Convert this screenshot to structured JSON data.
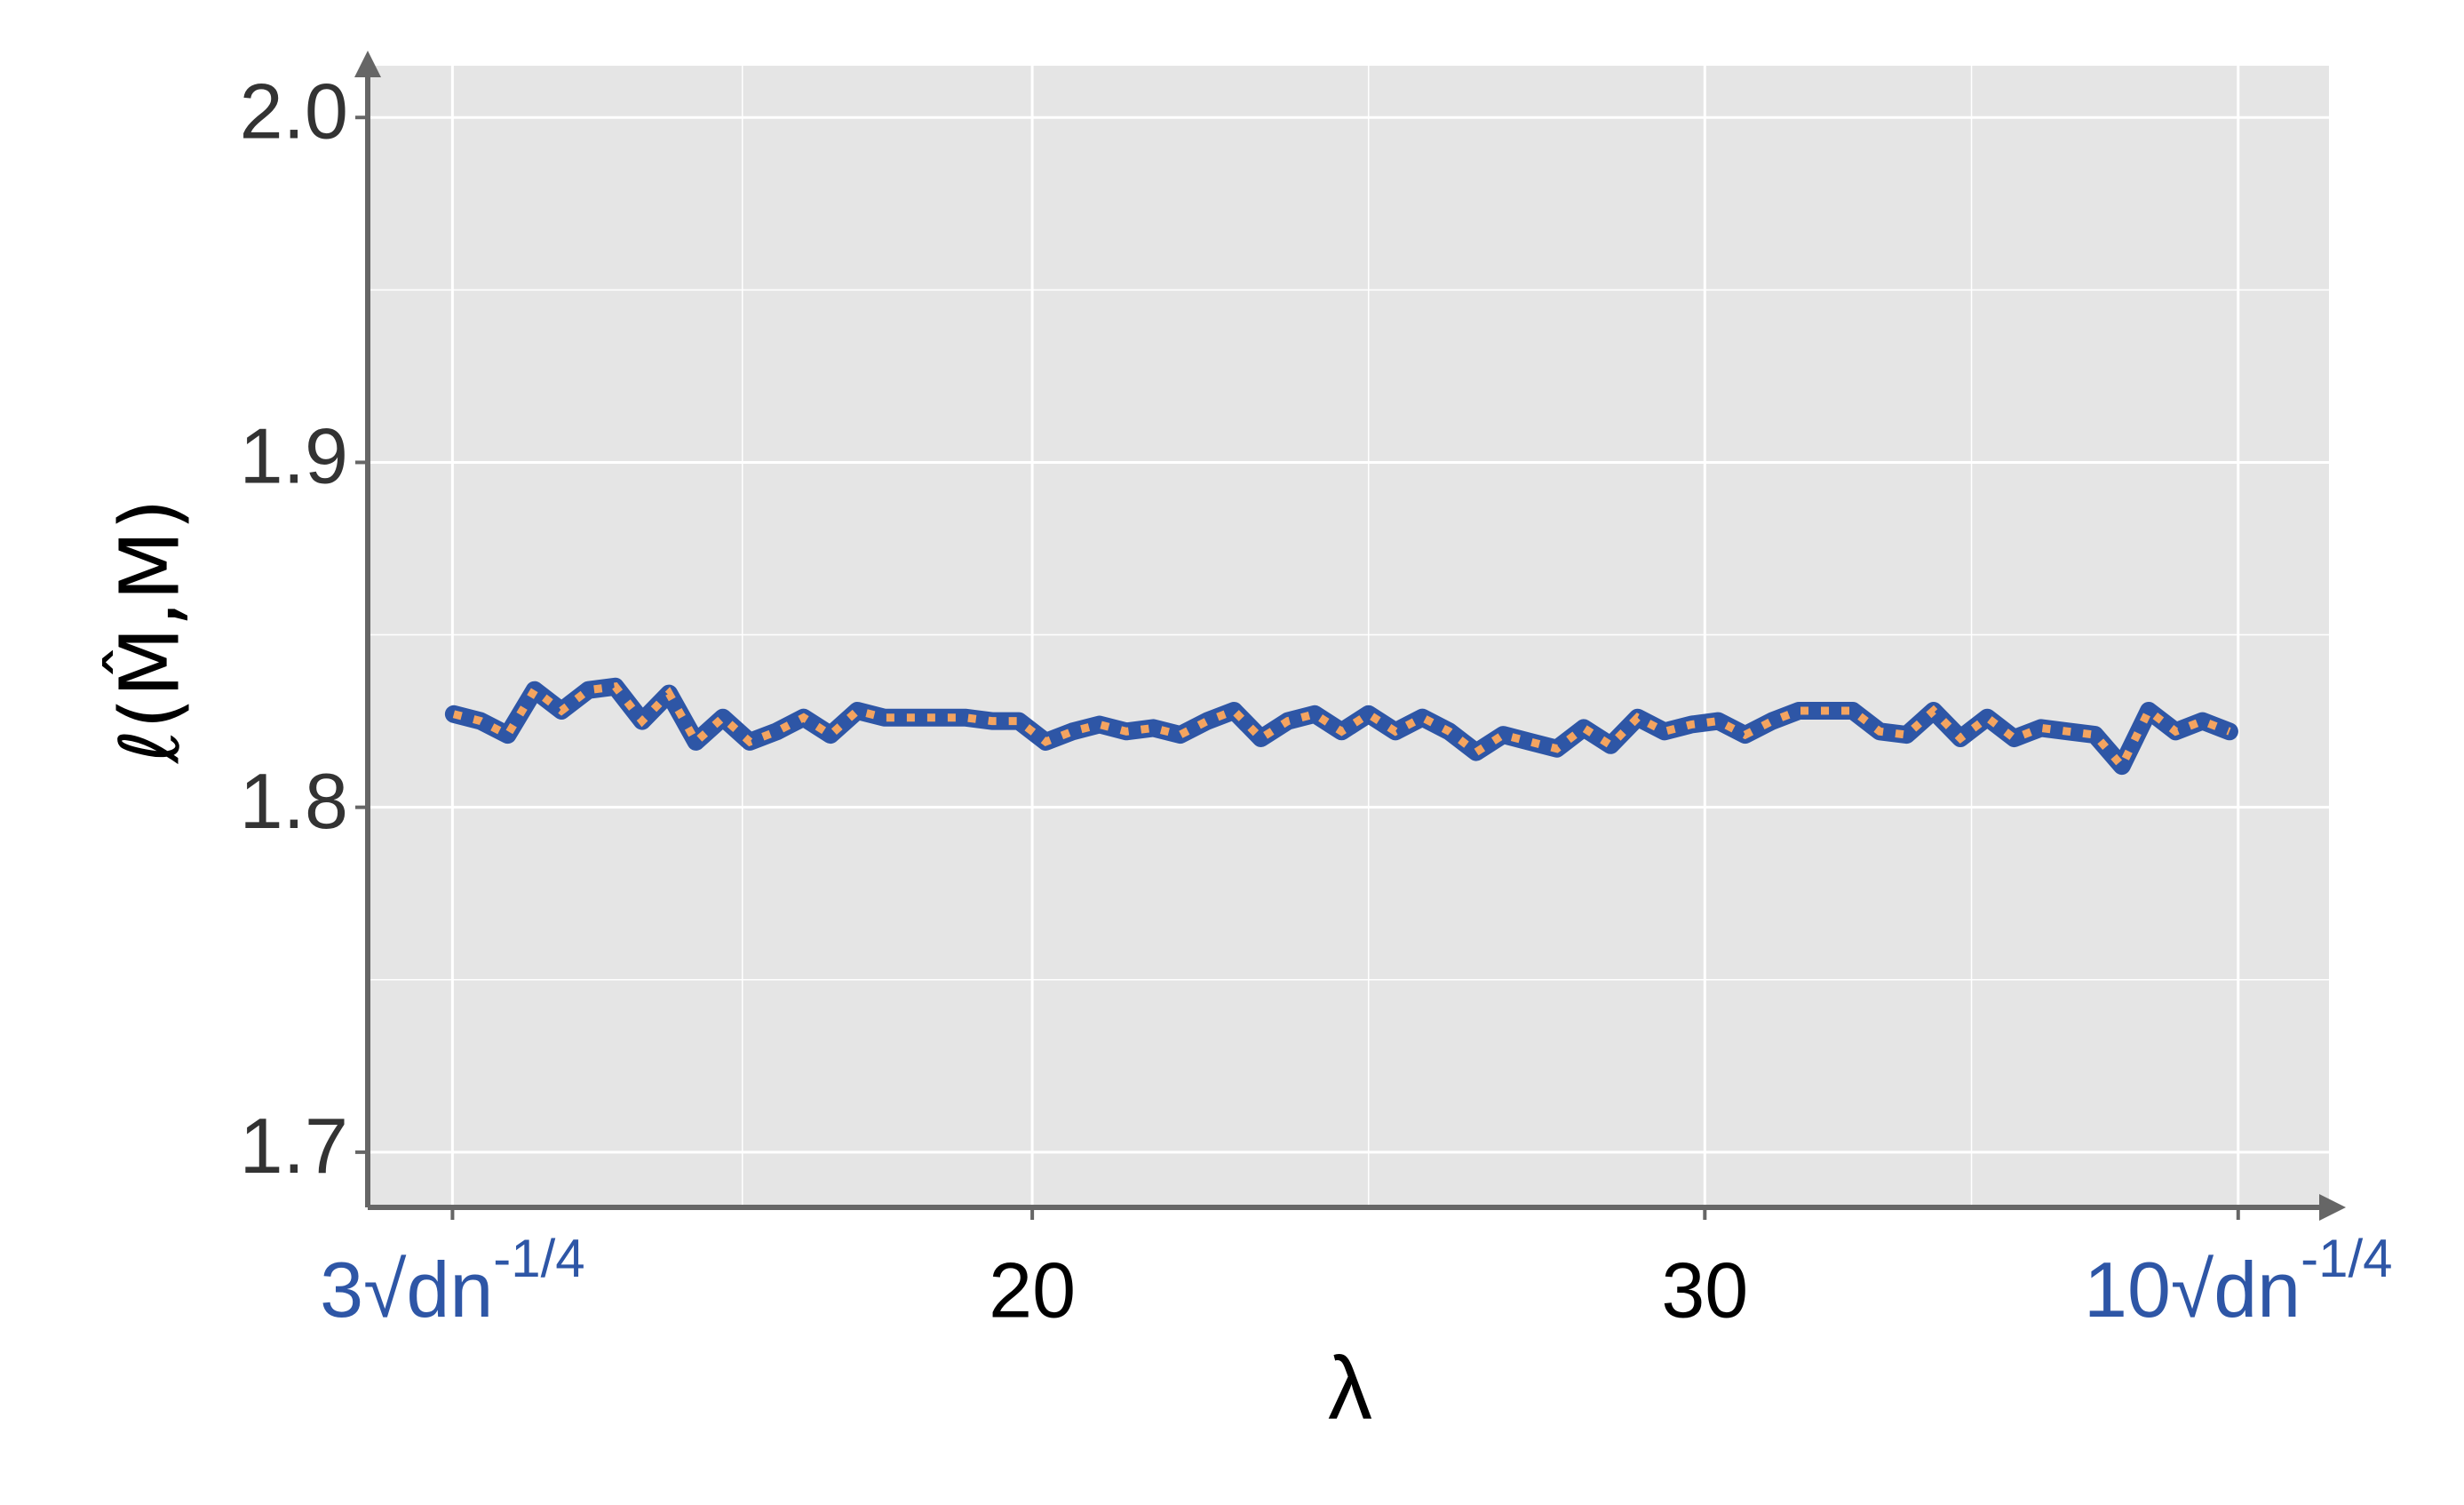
{
  "chart_data": {
    "type": "line",
    "y_label": "ℓ(M̂,M)",
    "x_label": "λ",
    "x": [
      11.4,
      11.8,
      12.2,
      12.6,
      13.0,
      13.4,
      13.8,
      14.2,
      14.6,
      15.0,
      15.4,
      15.8,
      16.2,
      16.6,
      17.0,
      17.4,
      17.8,
      18.2,
      18.6,
      19.0,
      19.4,
      19.8,
      20.2,
      20.6,
      21.0,
      21.4,
      21.8,
      22.2,
      22.6,
      23.0,
      23.4,
      23.8,
      24.2,
      24.6,
      25.0,
      25.4,
      25.8,
      26.2,
      26.6,
      27.0,
      27.4,
      27.8,
      28.2,
      28.6,
      29.0,
      29.4,
      29.8,
      30.2,
      30.6,
      31.0,
      31.4,
      31.8,
      32.2,
      32.6,
      33.0,
      33.4,
      33.8,
      34.2,
      34.6,
      35.0,
      35.4,
      35.8,
      36.2,
      36.6,
      37.0,
      37.4,
      37.8
    ],
    "series": [
      {
        "color": "#2e56a6",
        "dot_color": "#f4a460",
        "values": [
          1.827,
          1.825,
          1.821,
          1.834,
          1.828,
          1.834,
          1.835,
          1.825,
          1.833,
          1.819,
          1.826,
          1.819,
          1.822,
          1.826,
          1.821,
          1.828,
          1.826,
          1.826,
          1.826,
          1.826,
          1.825,
          1.825,
          1.819,
          1.822,
          1.824,
          1.822,
          1.823,
          1.821,
          1.825,
          1.828,
          1.82,
          1.825,
          1.827,
          1.822,
          1.827,
          1.822,
          1.826,
          1.822,
          1.816,
          1.821,
          1.819,
          1.817,
          1.823,
          1.818,
          1.826,
          1.822,
          1.824,
          1.825,
          1.821,
          1.825,
          1.828,
          1.828,
          1.828,
          1.822,
          1.821,
          1.828,
          1.82,
          1.826,
          1.82,
          1.823,
          1.822,
          1.821,
          1.812,
          1.828,
          1.822,
          1.825,
          1.822
        ]
      }
    ],
    "xlim": [
      10.12,
      39.28
    ],
    "ylim": [
      1.684,
      2.015
    ],
    "xticks": [
      {
        "value": 11.38,
        "label": "3√dn",
        "superscript": "-1/4",
        "color": "#2e56a6"
      },
      20,
      30,
      {
        "value": 37.93,
        "label": "10√dn",
        "superscript": "-1/4",
        "color": "#2e56a6"
      }
    ],
    "yticks": [
      1.7,
      1.8,
      1.9,
      {
        "value": 2.0,
        "label": "2.0"
      }
    ],
    "grid": true,
    "minor_grid": true
  }
}
